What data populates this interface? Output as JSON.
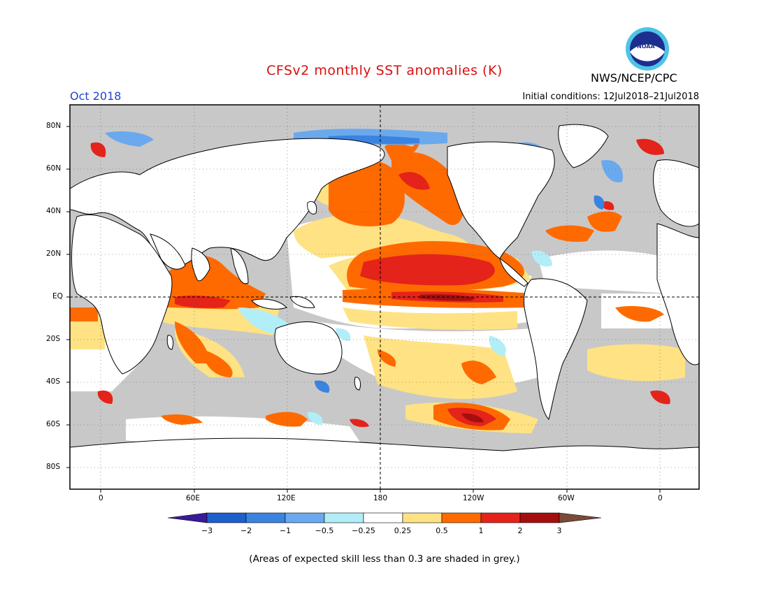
{
  "header": {
    "title": "CFSv2 monthly SST anomalies (K)",
    "month": "Oct 2018",
    "initial_conditions": "Initial conditions: 12Jul2018–21Jul2018",
    "agency": "NWS/NCEP/CPC",
    "logo_text": "NOAA"
  },
  "axes": {
    "lat_labels": [
      "80N",
      "60N",
      "40N",
      "20N",
      "EQ",
      "20S",
      "40S",
      "60S",
      "80S"
    ],
    "lon_labels": [
      "0",
      "60E",
      "120E",
      "180",
      "120W",
      "60W",
      "0"
    ]
  },
  "colorbar": {
    "labels": [
      "−3",
      "−2",
      "−1",
      "−0.5",
      "−0.25",
      "0.25",
      "0.5",
      "1",
      "2",
      "3"
    ],
    "colors": [
      "#3a1a9a",
      "#1e5fcc",
      "#3a83e0",
      "#6aa9ee",
      "#b2eef8",
      "#ffffff",
      "#ffe283",
      "#ff6a00",
      "#e4231a",
      "#a50e0e",
      "#7a4a3a"
    ]
  },
  "footnote": "(Areas of expected skill less than 0.3 are shaded in grey.)",
  "colors": {
    "land": "#ffffff",
    "ocean_low_skill": "#c8c8c8",
    "title": "#d81010",
    "month": "#2244cc"
  }
}
